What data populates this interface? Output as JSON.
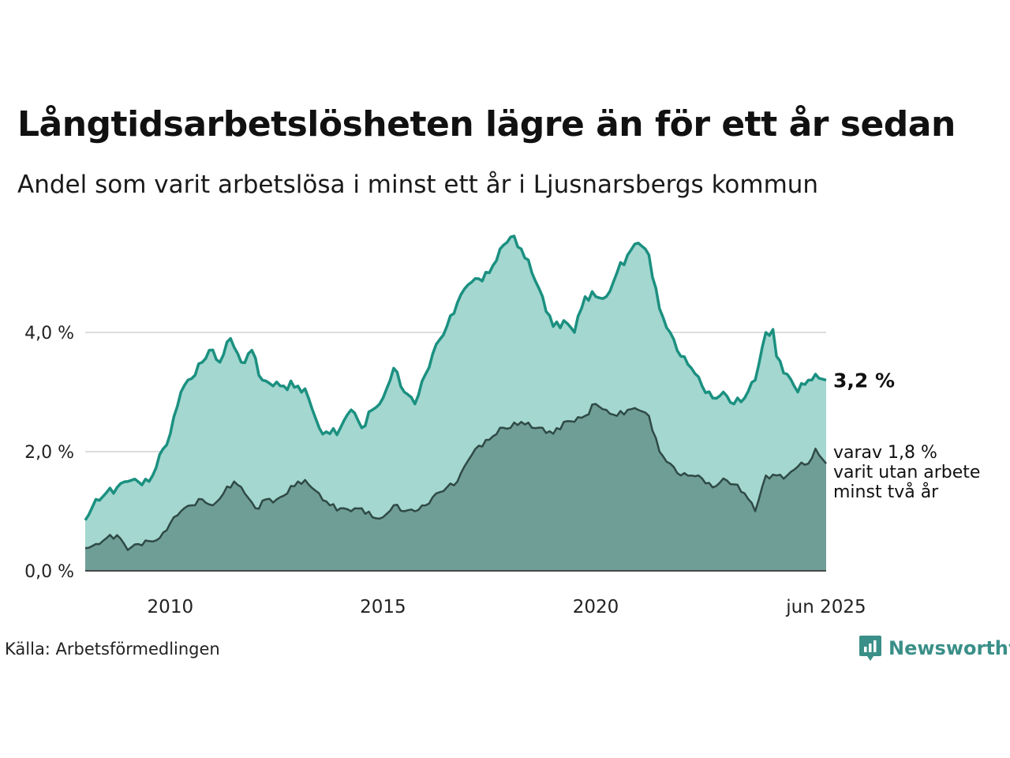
{
  "title": "Långtidsarbetslösheten lägre än för ett år sedan",
  "subtitle": "Andel som varit arbetslösa i minst ett år i Ljusnarsbergs kommun",
  "source": "Källa: Arbetsförmedlingen",
  "brand": {
    "name": "Newsworthy",
    "icon": "newsworthy-logo-icon",
    "color": "#3a8f88"
  },
  "colors": {
    "upper_line": "#1b9080",
    "upper_fill": "#a3d7d0",
    "lower_line": "#2f4a45",
    "lower_fill": "#6f9e97",
    "grid": "#dddddd"
  },
  "chart_data": {
    "type": "area",
    "x_start": "2008-01",
    "x_end": "2025-06",
    "x_ticks": [
      "2010",
      "2015",
      "2020",
      "jun 2025"
    ],
    "y_ticks": [
      "0,0 %",
      "2,0 %",
      "4,0 %"
    ],
    "ylim": [
      0,
      6
    ],
    "grid": "horizontal",
    "series": [
      {
        "name": "",
        "end_label": "3,2 %",
        "anchors": [
          [
            "2008-01",
            0.85
          ],
          [
            "2008-04",
            1.2
          ],
          [
            "2008-10",
            1.4
          ],
          [
            "2009-01",
            1.5
          ],
          [
            "2009-07",
            1.5
          ],
          [
            "2010-01",
            2.3
          ],
          [
            "2010-04",
            3.0
          ],
          [
            "2010-10",
            3.5
          ],
          [
            "2010-12",
            3.7
          ],
          [
            "2011-03",
            3.5
          ],
          [
            "2011-06",
            3.9
          ],
          [
            "2011-09",
            3.5
          ],
          [
            "2011-12",
            3.7
          ],
          [
            "2012-03",
            3.2
          ],
          [
            "2012-06",
            3.1
          ],
          [
            "2012-09",
            3.1
          ],
          [
            "2013-01",
            3.1
          ],
          [
            "2013-04",
            2.9
          ],
          [
            "2013-07",
            2.4
          ],
          [
            "2013-10",
            2.3
          ],
          [
            "2014-01",
            2.4
          ],
          [
            "2014-04",
            2.7
          ],
          [
            "2014-07",
            2.4
          ],
          [
            "2014-10",
            2.7
          ],
          [
            "2015-01",
            2.9
          ],
          [
            "2015-04",
            3.4
          ],
          [
            "2015-07",
            3.0
          ],
          [
            "2015-10",
            2.8
          ],
          [
            "2016-01",
            3.3
          ],
          [
            "2016-04",
            3.8
          ],
          [
            "2016-07",
            4.1
          ],
          [
            "2016-10",
            4.5
          ],
          [
            "2017-01",
            4.8
          ],
          [
            "2017-04",
            4.9
          ],
          [
            "2017-07",
            5.0
          ],
          [
            "2017-10",
            5.4
          ],
          [
            "2018-01",
            5.6
          ],
          [
            "2018-04",
            5.4
          ],
          [
            "2018-07",
            5.0
          ],
          [
            "2018-10",
            4.6
          ],
          [
            "2019-01",
            4.1
          ],
          [
            "2019-04",
            4.2
          ],
          [
            "2019-07",
            4.0
          ],
          [
            "2019-10",
            4.6
          ],
          [
            "2020-01",
            4.6
          ],
          [
            "2020-04",
            4.6
          ],
          [
            "2020-07",
            5.0
          ],
          [
            "2020-10",
            5.3
          ],
          [
            "2021-01",
            5.5
          ],
          [
            "2021-04",
            5.3
          ],
          [
            "2021-07",
            4.4
          ],
          [
            "2021-10",
            4.0
          ],
          [
            "2022-01",
            3.6
          ],
          [
            "2022-04",
            3.4
          ],
          [
            "2022-07",
            3.1
          ],
          [
            "2022-10",
            2.9
          ],
          [
            "2023-01",
            3.0
          ],
          [
            "2023-04",
            2.8
          ],
          [
            "2023-07",
            2.9
          ],
          [
            "2023-10",
            3.2
          ],
          [
            "2024-01",
            4.0
          ],
          [
            "2024-03",
            4.05
          ],
          [
            "2024-04",
            3.6
          ],
          [
            "2024-07",
            3.3
          ],
          [
            "2024-10",
            3.0
          ],
          [
            "2025-01",
            3.2
          ],
          [
            "2025-03",
            3.3
          ],
          [
            "2025-06",
            3.2
          ]
        ]
      },
      {
        "name": "",
        "end_label": [
          "varav 1,8 %",
          "varit utan arbete",
          "minst två år"
        ],
        "anchors": [
          [
            "2008-01",
            0.38
          ],
          [
            "2008-04",
            0.45
          ],
          [
            "2008-07",
            0.55
          ],
          [
            "2008-10",
            0.6
          ],
          [
            "2009-01",
            0.35
          ],
          [
            "2009-04",
            0.45
          ],
          [
            "2009-07",
            0.5
          ],
          [
            "2009-10",
            0.55
          ],
          [
            "2010-01",
            0.8
          ],
          [
            "2010-04",
            1.0
          ],
          [
            "2010-07",
            1.1
          ],
          [
            "2010-10",
            1.2
          ],
          [
            "2011-01",
            1.1
          ],
          [
            "2011-04",
            1.3
          ],
          [
            "2011-07",
            1.5
          ],
          [
            "2011-10",
            1.3
          ],
          [
            "2012-01",
            1.05
          ],
          [
            "2012-04",
            1.2
          ],
          [
            "2012-07",
            1.2
          ],
          [
            "2012-10",
            1.3
          ],
          [
            "2013-01",
            1.5
          ],
          [
            "2013-04",
            1.45
          ],
          [
            "2013-07",
            1.3
          ],
          [
            "2013-10",
            1.1
          ],
          [
            "2014-01",
            1.05
          ],
          [
            "2014-04",
            1.0
          ],
          [
            "2014-07",
            1.05
          ],
          [
            "2014-10",
            0.9
          ],
          [
            "2015-01",
            0.9
          ],
          [
            "2015-04",
            1.1
          ],
          [
            "2015-07",
            1.0
          ],
          [
            "2015-10",
            1.0
          ],
          [
            "2016-01",
            1.1
          ],
          [
            "2016-04",
            1.3
          ],
          [
            "2016-07",
            1.4
          ],
          [
            "2016-10",
            1.5
          ],
          [
            "2017-01",
            1.85
          ],
          [
            "2017-04",
            2.1
          ],
          [
            "2017-07",
            2.2
          ],
          [
            "2017-10",
            2.4
          ],
          [
            "2018-01",
            2.4
          ],
          [
            "2018-04",
            2.5
          ],
          [
            "2018-07",
            2.4
          ],
          [
            "2018-10",
            2.4
          ],
          [
            "2019-01",
            2.3
          ],
          [
            "2019-04",
            2.5
          ],
          [
            "2019-07",
            2.5
          ],
          [
            "2019-10",
            2.6
          ],
          [
            "2020-01",
            2.8
          ],
          [
            "2020-04",
            2.7
          ],
          [
            "2020-07",
            2.6
          ],
          [
            "2020-10",
            2.7
          ],
          [
            "2021-01",
            2.7
          ],
          [
            "2021-04",
            2.6
          ],
          [
            "2021-07",
            2.0
          ],
          [
            "2021-10",
            1.8
          ],
          [
            "2022-01",
            1.6
          ],
          [
            "2022-04",
            1.6
          ],
          [
            "2022-07",
            1.55
          ],
          [
            "2022-10",
            1.4
          ],
          [
            "2023-01",
            1.55
          ],
          [
            "2023-04",
            1.45
          ],
          [
            "2023-07",
            1.3
          ],
          [
            "2023-10",
            1.0
          ],
          [
            "2024-01",
            1.6
          ],
          [
            "2024-04",
            1.6
          ],
          [
            "2024-07",
            1.6
          ],
          [
            "2024-10",
            1.75
          ],
          [
            "2025-01",
            1.8
          ],
          [
            "2025-03",
            2.05
          ],
          [
            "2025-06",
            1.8
          ]
        ]
      }
    ]
  }
}
